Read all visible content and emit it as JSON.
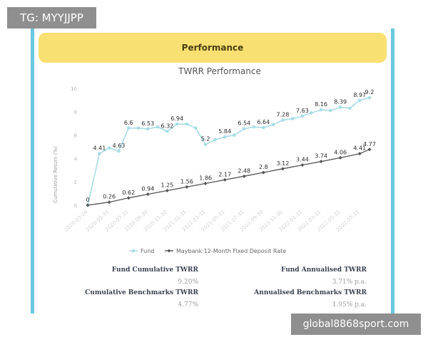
{
  "watermark_top": "TG: MYYJJPP",
  "watermark_bottom": "global8868sport.com",
  "header": {
    "title": "Performance"
  },
  "colors": {
    "frame": "#6cc7df",
    "header_bg": "#f9e072",
    "fund": "#a9dce6",
    "benchmark": "#555555"
  },
  "chart_data": {
    "type": "line",
    "title": "TWRR Performance",
    "xlabel": "",
    "ylabel": "Cumulative Return (%)",
    "ylim": [
      0,
      10
    ],
    "yticks": [
      "0",
      "2",
      "4",
      "6",
      "8",
      "10"
    ],
    "grid": false,
    "legend_position": "bottom",
    "x_ticks": [
      "2020-03-24",
      "2020-05-31",
      "2020-07-31",
      "2020-09-30",
      "2020-11-30",
      "2021-01-31",
      "2021-03-31",
      "2021-05-31",
      "2021-07-31",
      "2021-09-30",
      "2021-11-30",
      "2022-01-31",
      "2022-03-31",
      "2022-05-31",
      "2022-07-31"
    ],
    "series": [
      {
        "name": "Fund",
        "color": "#a9dce6",
        "x": [
          "2020-03-24",
          "2020-04-30",
          "2020-05-31",
          "2020-06-30",
          "2020-07-31",
          "2020-08-31",
          "2020-09-30",
          "2020-10-31",
          "2020-11-30",
          "2020-12-31",
          "2021-01-31",
          "2021-02-28",
          "2021-03-31",
          "2021-04-30",
          "2021-05-31",
          "2021-06-30",
          "2021-07-31",
          "2021-08-31",
          "2021-09-30",
          "2021-10-31",
          "2021-11-30",
          "2021-12-31",
          "2022-01-31",
          "2022-02-28",
          "2022-03-31",
          "2022-04-30",
          "2022-05-31",
          "2022-06-30",
          "2022-07-31",
          "2022-08-31"
        ],
        "values": [
          0,
          4.41,
          4.9,
          4.63,
          6.6,
          6.6,
          6.53,
          6.7,
          6.32,
          6.94,
          6.94,
          6.6,
          5.2,
          5.6,
          5.84,
          6.0,
          6.54,
          6.7,
          6.64,
          6.9,
          7.28,
          7.4,
          7.63,
          7.9,
          8.16,
          8.1,
          8.39,
          8.3,
          8.97,
          9.2
        ],
        "labels": [
          {
            "i": 0,
            "text": "0"
          },
          {
            "i": 1,
            "text": "4.41"
          },
          {
            "i": 3,
            "text": "4.63"
          },
          {
            "i": 4,
            "text": "6.6"
          },
          {
            "i": 6,
            "text": "6.53"
          },
          {
            "i": 8,
            "text": "6.32"
          },
          {
            "i": 9,
            "text": "6.94"
          },
          {
            "i": 12,
            "text": "5.2"
          },
          {
            "i": 14,
            "text": "5.84"
          },
          {
            "i": 16,
            "text": "6.54"
          },
          {
            "i": 18,
            "text": "6.64"
          },
          {
            "i": 20,
            "text": "7.28"
          },
          {
            "i": 22,
            "text": "7.63"
          },
          {
            "i": 24,
            "text": "8.16"
          },
          {
            "i": 26,
            "text": "8.39"
          },
          {
            "i": 28,
            "text": "8.97"
          },
          {
            "i": 29,
            "text": "9.2"
          }
        ]
      },
      {
        "name": "Maybank 12-Month Fixed Deposit Rate",
        "color": "#555555",
        "x": [
          "2020-03-24",
          "2020-05-31",
          "2020-07-31",
          "2020-09-30",
          "2020-11-30",
          "2021-01-31",
          "2021-03-31",
          "2021-05-31",
          "2021-07-31",
          "2021-09-30",
          "2021-11-30",
          "2022-01-31",
          "2022-03-31",
          "2022-05-31",
          "2022-07-31",
          "2022-08-31"
        ],
        "values": [
          0,
          0.26,
          0.62,
          0.94,
          1.25,
          1.56,
          1.86,
          2.17,
          2.48,
          2.8,
          3.12,
          3.44,
          3.74,
          4.06,
          4.41,
          4.77
        ],
        "labels": [
          {
            "i": 1,
            "text": "0.26"
          },
          {
            "i": 2,
            "text": "0.62"
          },
          {
            "i": 3,
            "text": "0.94"
          },
          {
            "i": 4,
            "text": "1.25"
          },
          {
            "i": 5,
            "text": "1.56"
          },
          {
            "i": 6,
            "text": "1.86"
          },
          {
            "i": 7,
            "text": "2.17"
          },
          {
            "i": 8,
            "text": "2.48"
          },
          {
            "i": 9,
            "text": "2.8"
          },
          {
            "i": 10,
            "text": "3.12"
          },
          {
            "i": 11,
            "text": "3.44"
          },
          {
            "i": 12,
            "text": "3.74"
          },
          {
            "i": 13,
            "text": "4.06"
          },
          {
            "i": 14,
            "text": "4.41"
          },
          {
            "i": 15,
            "text": "4.77"
          }
        ]
      }
    ]
  },
  "stats": {
    "fund_cumulative": {
      "title": "Fund Cumulative TWRR",
      "value": "9.20%"
    },
    "fund_annualised": {
      "title": "Fund Annualised TWRR",
      "value": "3.71% p.a."
    },
    "bench_cumulative": {
      "title": "Cumulative Benchmarks TWRR",
      "value": "4.77%"
    },
    "bench_annualised": {
      "title": "Annualised Benchmarks TWRR",
      "value": "1.95% p.a."
    }
  }
}
